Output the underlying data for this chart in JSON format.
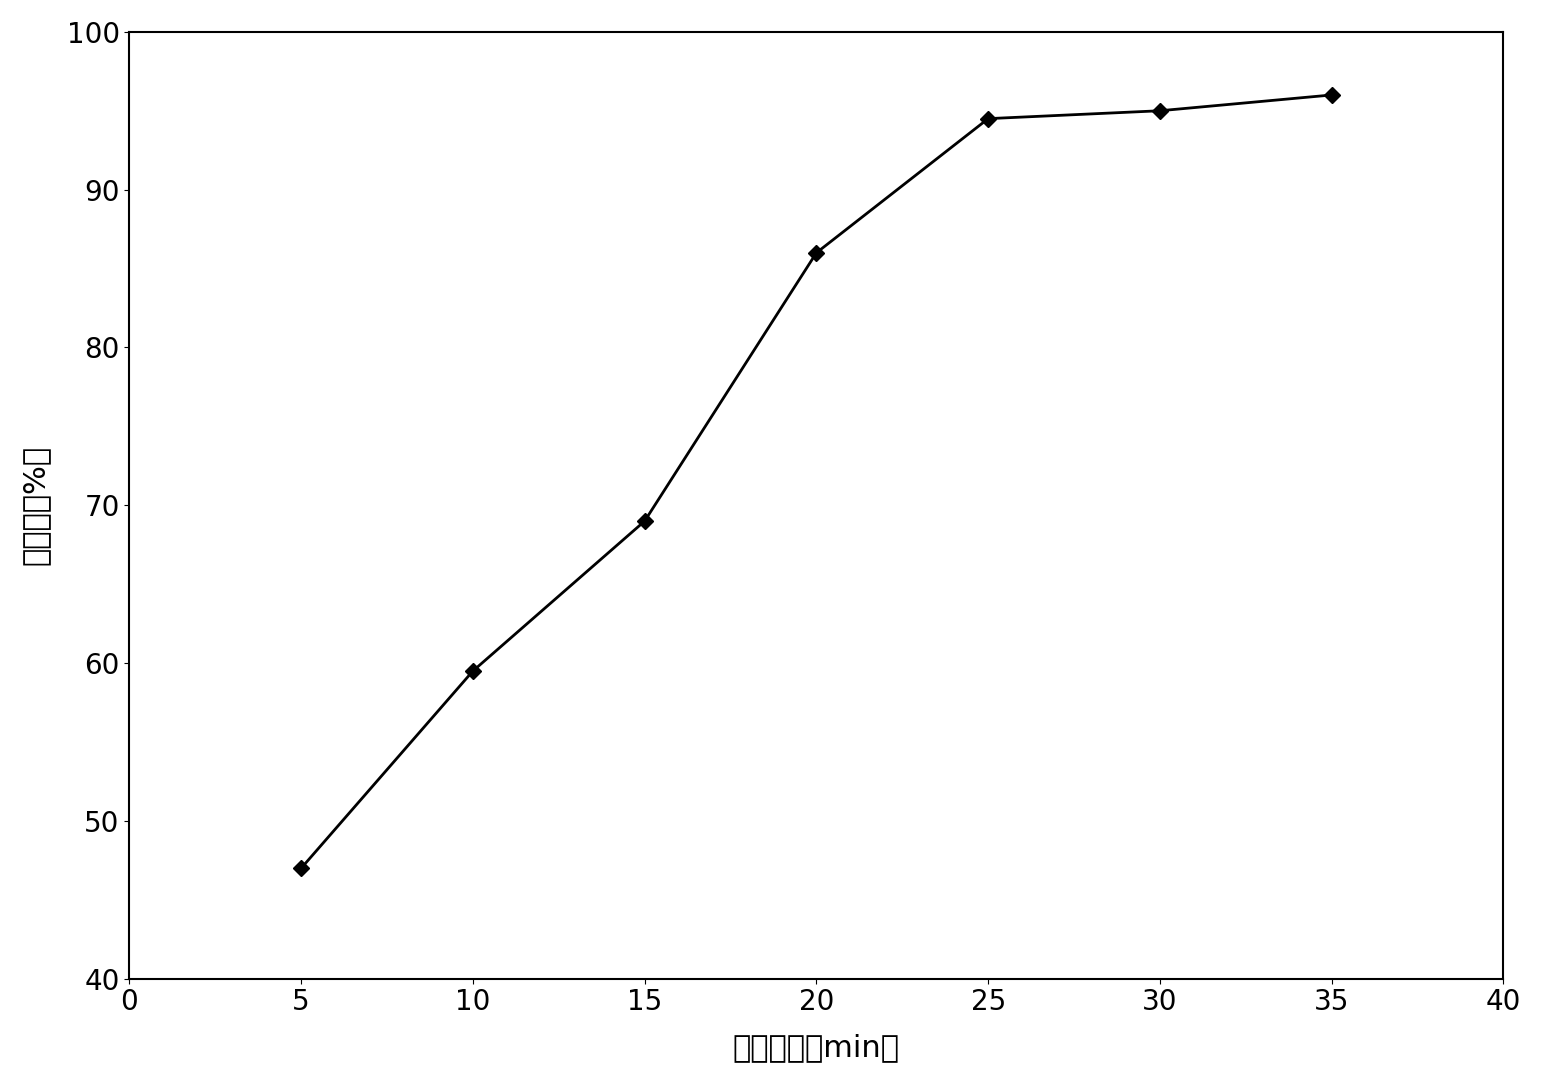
{
  "x": [
    5,
    10,
    15,
    20,
    25,
    30,
    35
  ],
  "y": [
    47,
    59.5,
    69,
    86,
    94.5,
    95,
    96
  ],
  "xlim": [
    0,
    40
  ],
  "ylim": [
    40,
    100
  ],
  "xticks": [
    0,
    5,
    10,
    15,
    20,
    25,
    30,
    35,
    40
  ],
  "yticks": [
    40,
    50,
    60,
    70,
    80,
    90,
    100
  ],
  "xlabel": "反应时间（min）",
  "ylabel": "转化率（%）",
  "line_color": "#000000",
  "marker": "D",
  "marker_size": 8,
  "marker_color": "#000000",
  "line_width": 2.0,
  "background_color": "#ffffff",
  "xlabel_fontsize": 22,
  "ylabel_fontsize": 22,
  "tick_fontsize": 20
}
